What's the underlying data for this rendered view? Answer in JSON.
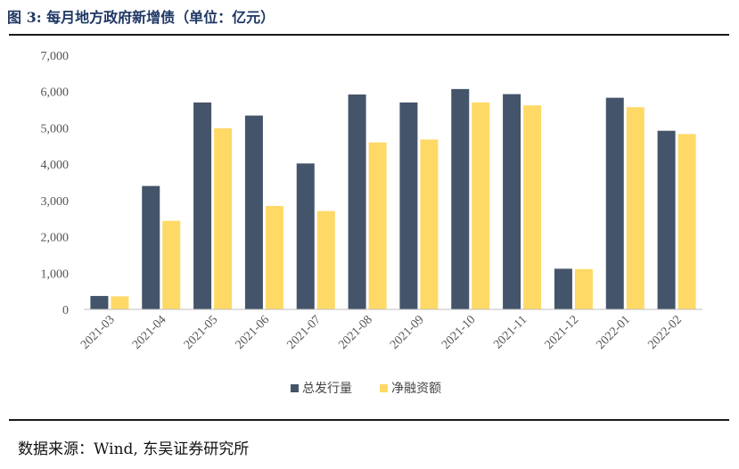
{
  "title": "图 3:  每月地方政府新增债（单位：亿元）",
  "source": "数据来源：Wind, 东吴证券研究所",
  "colors": {
    "series1": "#44546a",
    "series2": "#ffd966"
  },
  "chart_data": {
    "type": "bar",
    "categories": [
      "2021-03",
      "2021-04",
      "2021-05",
      "2021-06",
      "2021-07",
      "2021-08",
      "2021-09",
      "2021-10",
      "2021-11",
      "2021-12",
      "2022-01",
      "2022-02"
    ],
    "series": [
      {
        "name": "总发行量",
        "values": [
          370,
          3400,
          5700,
          5340,
          4020,
          5920,
          5700,
          6070,
          5930,
          1120,
          5830,
          4920
        ]
      },
      {
        "name": "净融资额",
        "values": [
          360,
          2440,
          4990,
          2850,
          2710,
          4600,
          4680,
          5700,
          5620,
          1110,
          5570,
          4830
        ]
      }
    ],
    "ylim": [
      0,
      7000
    ],
    "yticks": [
      "0",
      "1,000",
      "2,000",
      "3,000",
      "4,000",
      "5,000",
      "6,000",
      "7,000"
    ],
    "ytick_values": [
      0,
      1000,
      2000,
      3000,
      4000,
      5000,
      6000,
      7000
    ],
    "legend_position": "bottom"
  }
}
